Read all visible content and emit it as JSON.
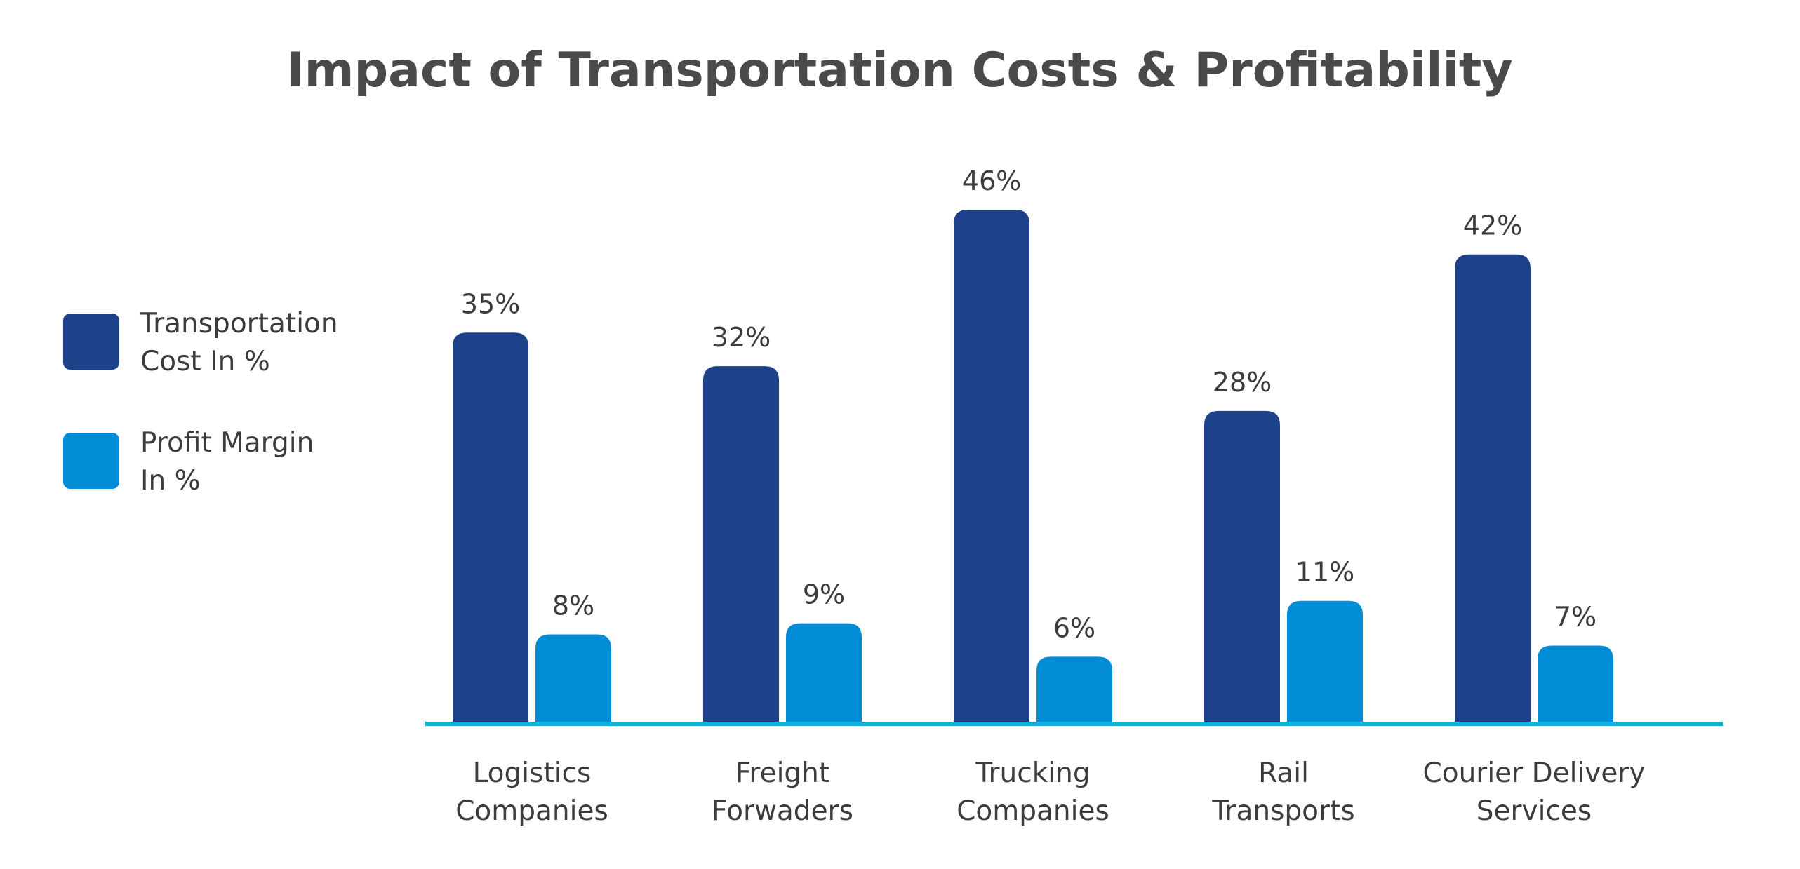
{
  "chart_data": {
    "type": "bar",
    "title": "Impact of Transportation Costs & Profitability",
    "xlabel": "",
    "ylabel": "",
    "ylim": [
      0,
      46
    ],
    "categories": [
      [
        "Logistics",
        "Companies"
      ],
      [
        "Freight",
        "Forwaders"
      ],
      [
        "Trucking",
        "Companies"
      ],
      [
        "Rail",
        "Transports"
      ],
      [
        "Courier Delivery",
        "Services"
      ]
    ],
    "series": [
      {
        "name": "Transportation Cost In %",
        "legend_lines": [
          "Transportation",
          "Cost In %"
        ],
        "color": "#1d428a",
        "values": [
          35,
          32,
          46,
          28,
          42
        ],
        "labels": [
          "35%",
          "32%",
          "46%",
          "28%",
          "42%"
        ]
      },
      {
        "name": "Profit Margin In %",
        "legend_lines": [
          "Profit Margin",
          "In %"
        ],
        "color": "#028cd6",
        "values": [
          8,
          9,
          6,
          11,
          7
        ],
        "labels": [
          "8%",
          "9%",
          "6%",
          "11%",
          "7%"
        ]
      }
    ],
    "legend_position": "left",
    "grid": false
  },
  "colors": {
    "title": "#4a4a4a",
    "text": "#3c3c3c",
    "baseline": "#12b3d9"
  }
}
